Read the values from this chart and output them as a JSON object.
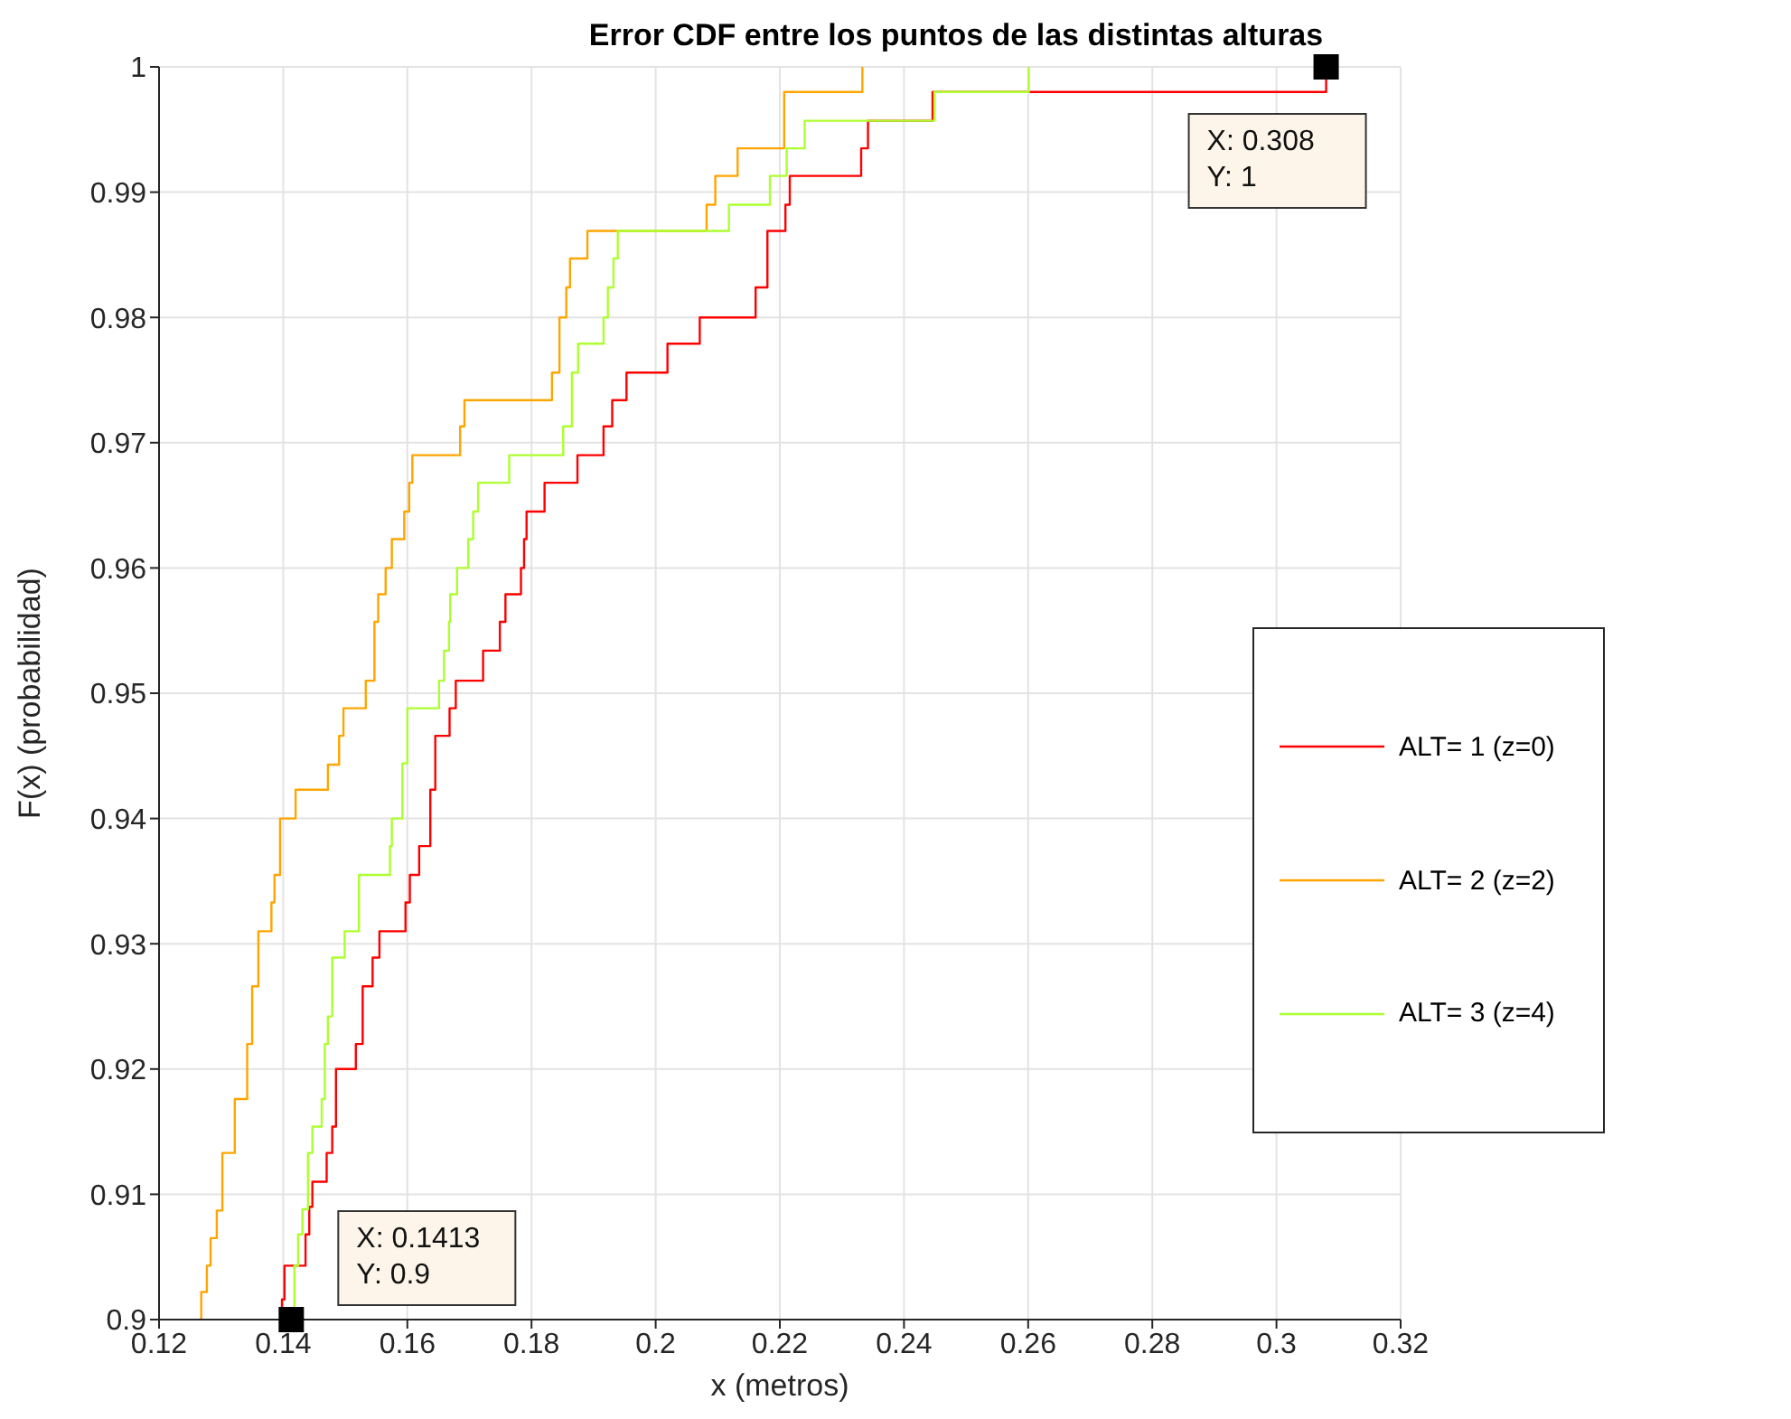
{
  "chart_data": {
    "type": "step",
    "title": "Error CDF entre los puntos de las distintas alturas",
    "xlabel": "x (metros)",
    "ylabel": "F(x) (probabilidad)",
    "xlim": [
      0.12,
      0.32
    ],
    "xticks": [
      0.12,
      0.14,
      0.16,
      0.18,
      0.2,
      0.22,
      0.24,
      0.26,
      0.28,
      0.3,
      0.32
    ],
    "ylim": [
      0.9,
      1
    ],
    "yticks": [
      0.9,
      0.91,
      0.92,
      0.93,
      0.94,
      0.95,
      0.96,
      0.97,
      0.98,
      0.99,
      1
    ],
    "grid": true,
    "legend": "right",
    "marker": "none",
    "line_style": "solid",
    "annotations": [
      {
        "text": "X: 0.1413\nY: 0.9",
        "x": 0.1413,
        "y": 0.9
      },
      {
        "text": "X: 0.308\nY: 1",
        "x": 0.308,
        "y": 1
      }
    ],
    "series": [
      {
        "name": "ALT= 1 (z=0)",
        "color": "#ff0000",
        "x": [
          0.1396,
          0.1398,
          0.1402,
          0.1436,
          0.1442,
          0.1447,
          0.147,
          0.1479,
          0.1485,
          0.1517,
          0.1528,
          0.1544,
          0.1555,
          0.1597,
          0.1604,
          0.1619,
          0.1637,
          0.1645,
          0.1668,
          0.1678,
          0.1722,
          0.1749,
          0.1758,
          0.1783,
          0.1788,
          0.1792,
          0.1821,
          0.1874,
          0.1916,
          0.193,
          0.1953,
          0.2019,
          0.2071,
          0.2161,
          0.218,
          0.2209,
          0.2216,
          0.2331,
          0.2342,
          0.2446,
          0.308
        ],
        "values": [
          0.9,
          0.9016,
          0.9043,
          0.9068,
          0.909,
          0.911,
          0.9133,
          0.9154,
          0.92,
          0.922,
          0.9266,
          0.9289,
          0.931,
          0.9333,
          0.9355,
          0.9378,
          0.9423,
          0.9466,
          0.9488,
          0.951,
          0.9534,
          0.9557,
          0.9579,
          0.96,
          0.9623,
          0.9645,
          0.9668,
          0.969,
          0.9713,
          0.9734,
          0.9756,
          0.9779,
          0.98,
          0.9824,
          0.9869,
          0.989,
          0.9913,
          0.9935,
          0.9957,
          0.998,
          1
        ]
      },
      {
        "name": "ALT= 2 (z=2)",
        "color": "#ffa500",
        "x": [
          0.1265,
          0.1268,
          0.1277,
          0.1283,
          0.1293,
          0.1302,
          0.1322,
          0.1342,
          0.135,
          0.136,
          0.1381,
          0.1386,
          0.1395,
          0.142,
          0.1472,
          0.149,
          0.1497,
          0.1533,
          0.1547,
          0.1553,
          0.1565,
          0.1575,
          0.1595,
          0.1603,
          0.1608,
          0.1685,
          0.1692,
          0.1833,
          0.1845,
          0.1856,
          0.1862,
          0.189,
          0.2082,
          0.2096,
          0.2132,
          0.2207,
          0.2333
        ],
        "values": [
          0.9,
          0.9022,
          0.9043,
          0.9065,
          0.9087,
          0.9133,
          0.9176,
          0.922,
          0.9266,
          0.931,
          0.9333,
          0.9355,
          0.94,
          0.9423,
          0.9443,
          0.9466,
          0.9488,
          0.951,
          0.9557,
          0.9579,
          0.96,
          0.9623,
          0.9645,
          0.9668,
          0.969,
          0.9713,
          0.9734,
          0.9756,
          0.98,
          0.9824,
          0.9847,
          0.9869,
          0.989,
          0.9913,
          0.9935,
          0.998,
          1
        ]
      },
      {
        "name": "ALT= 3 (z=4)",
        "color": "#adff2f",
        "x": [
          0.1415,
          0.1418,
          0.1424,
          0.1431,
          0.144,
          0.1447,
          0.1462,
          0.1467,
          0.1472,
          0.1479,
          0.1499,
          0.1522,
          0.1572,
          0.1575,
          0.1592,
          0.16,
          0.1651,
          0.1659,
          0.1667,
          0.1669,
          0.168,
          0.1698,
          0.1706,
          0.1714,
          0.1764,
          0.1851,
          0.1865,
          0.1875,
          0.1916,
          0.1923,
          0.1932,
          0.1939,
          0.2118,
          0.2184,
          0.2211,
          0.224,
          0.2449,
          0.2601
        ],
        "values": [
          0.9,
          0.9043,
          0.9068,
          0.9088,
          0.9133,
          0.9154,
          0.9176,
          0.922,
          0.9242,
          0.9289,
          0.931,
          0.9355,
          0.9378,
          0.94,
          0.9444,
          0.9488,
          0.951,
          0.9534,
          0.9557,
          0.9579,
          0.96,
          0.9623,
          0.9645,
          0.9668,
          0.969,
          0.9713,
          0.9756,
          0.9779,
          0.98,
          0.9824,
          0.9847,
          0.9869,
          0.989,
          0.9913,
          0.9935,
          0.9957,
          0.998,
          1
        ]
      }
    ]
  }
}
